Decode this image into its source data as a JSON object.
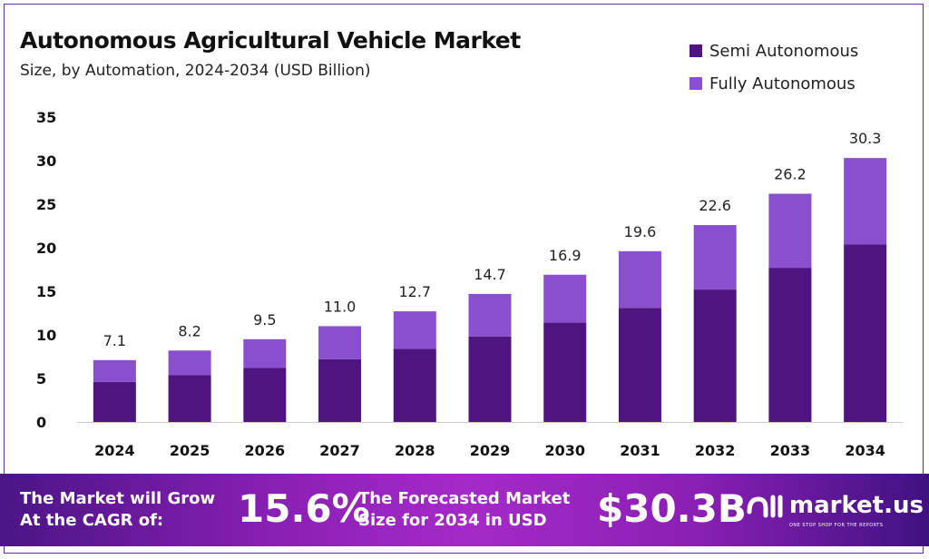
{
  "chart_data": {
    "type": "bar",
    "stacked": true,
    "title": "Autonomous Agricultural Vehicle Market",
    "subtitle": "Size, by Automation, 2024-2034 (USD Billion)",
    "categories": [
      "2024",
      "2025",
      "2026",
      "2027",
      "2028",
      "2029",
      "2030",
      "2031",
      "2032",
      "2033",
      "2034"
    ],
    "series": [
      {
        "name": "Semi Autonomous",
        "color": "#4e1580",
        "values": [
          4.6,
          5.4,
          6.2,
          7.2,
          8.4,
          9.8,
          11.4,
          13.1,
          15.2,
          17.7,
          20.4
        ]
      },
      {
        "name": "Fully Autonomous",
        "color": "#8a4fcf",
        "values": [
          2.5,
          2.8,
          3.3,
          3.8,
          4.3,
          4.9,
          5.5,
          6.5,
          7.4,
          8.5,
          9.9
        ]
      }
    ],
    "totals": [
      "7.1",
      "8.2",
      "9.5",
      "11.0",
      "12.7",
      "14.7",
      "16.9",
      "19.6",
      "22.6",
      "26.2",
      "30.3"
    ],
    "ylim": [
      0,
      35
    ],
    "yticks": [
      "0",
      "5",
      "10",
      "15",
      "20",
      "25",
      "30",
      "35"
    ],
    "grid": false,
    "legend": "top-right"
  },
  "banner": {
    "cagr_label_1": "The Market will Grow",
    "cagr_label_2": "At the CAGR of:",
    "cagr_value": "15.6%",
    "forecast_label_1": "The Forecasted Market",
    "forecast_label_2": "Size for 2034 in USD",
    "forecast_value": "$30.3B",
    "logo": "market.us",
    "logo_tagline": "ONE STOP SHOP FOR THE REPORTS"
  }
}
